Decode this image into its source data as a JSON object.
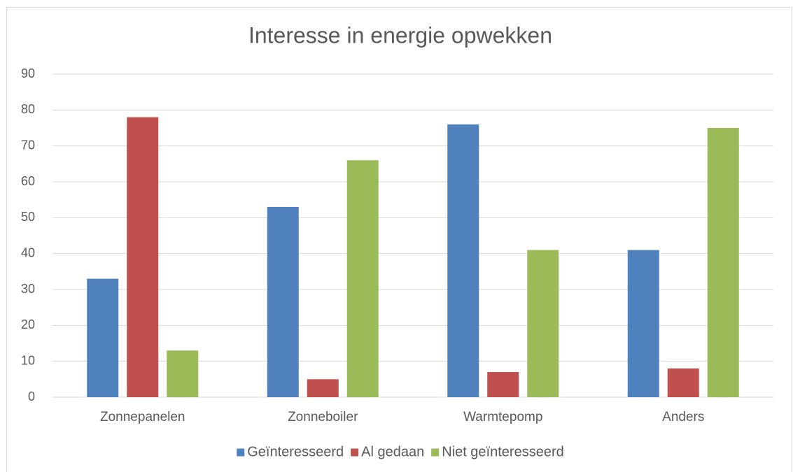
{
  "chart_data": {
    "type": "bar",
    "title": "Interesse in energie opwekken",
    "categories": [
      "Zonnepanelen",
      "Zonneboiler",
      "Warmtepomp",
      "Anders"
    ],
    "series": [
      {
        "name": "Geïnteresseerd",
        "color": "#4f81bd",
        "values": [
          33,
          53,
          76,
          41
        ]
      },
      {
        "name": "Al gedaan",
        "color": "#c0504d",
        "values": [
          78,
          5,
          7,
          8
        ]
      },
      {
        "name": "Niet geïnteresseerd",
        "color": "#9bbb59",
        "values": [
          13,
          66,
          41,
          75
        ]
      }
    ],
    "ylim": [
      0,
      90
    ],
    "yticks": [
      0,
      10,
      20,
      30,
      40,
      50,
      60,
      70,
      80,
      90
    ],
    "grid": true,
    "legend": "bottom"
  }
}
